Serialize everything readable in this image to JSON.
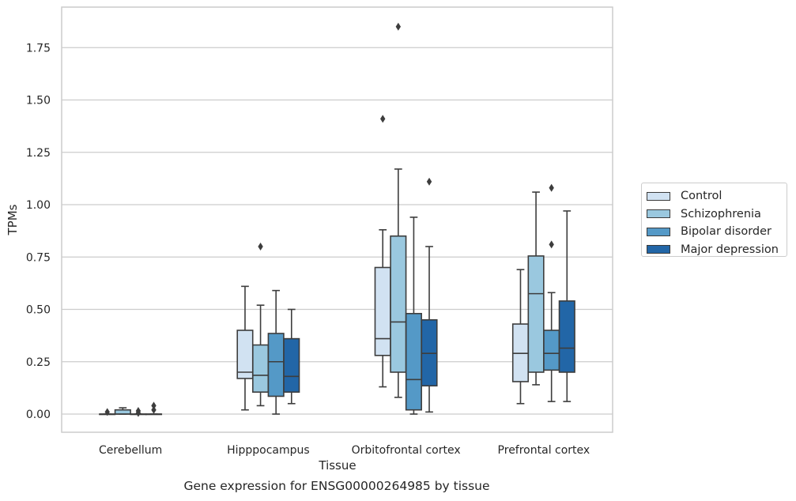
{
  "chart_data": {
    "type": "box",
    "title": "Gene expression for ENSG00000264985 by tissue",
    "xlabel": "Tissue",
    "ylabel": "TPMs",
    "ylim": [
      -0.09,
      1.9
    ],
    "yticks": [
      0.0,
      0.25,
      0.5,
      0.75,
      1.0,
      1.25,
      1.5,
      1.75
    ],
    "ytick_labels": [
      "0.00",
      "0.25",
      "0.50",
      "0.75",
      "1.00",
      "1.25",
      "1.50",
      "1.75"
    ],
    "grid": "horizontal",
    "legend_position": "right",
    "categories": [
      "Cerebellum",
      "Hipppocampus",
      "Orbitofrontal cortex",
      "Prefrontal cortex"
    ],
    "series": [
      {
        "name": "Control",
        "color": "#d1e2f2",
        "boxes": [
          {
            "whislo": 0.0,
            "q1": 0.0,
            "med": 0.0,
            "q3": 0.0,
            "whishi": 0.0,
            "fliers": [
              0.01
            ]
          },
          {
            "whislo": 0.02,
            "q1": 0.17,
            "med": 0.2,
            "q3": 0.4,
            "whishi": 0.61,
            "fliers": []
          },
          {
            "whislo": 0.13,
            "q1": 0.28,
            "med": 0.36,
            "q3": 0.7,
            "whishi": 0.88,
            "fliers": [
              1.41
            ]
          },
          {
            "whislo": 0.05,
            "q1": 0.155,
            "med": 0.29,
            "q3": 0.43,
            "whishi": 0.69,
            "fliers": []
          }
        ]
      },
      {
        "name": "Schizophrenia",
        "color": "#9ac8df",
        "boxes": [
          {
            "whislo": 0.0,
            "q1": 0.0,
            "med": 0.0,
            "q3": 0.02,
            "whishi": 0.03,
            "fliers": []
          },
          {
            "whislo": 0.04,
            "q1": 0.105,
            "med": 0.185,
            "q3": 0.33,
            "whishi": 0.52,
            "fliers": [
              0.8
            ]
          },
          {
            "whislo": 0.08,
            "q1": 0.2,
            "med": 0.44,
            "q3": 0.85,
            "whishi": 1.17,
            "fliers": [
              1.85
            ]
          },
          {
            "whislo": 0.14,
            "q1": 0.2,
            "med": 0.575,
            "q3": 0.755,
            "whishi": 1.06,
            "fliers": []
          }
        ]
      },
      {
        "name": "Bipolar disorder",
        "color": "#5499c7",
        "boxes": [
          {
            "whislo": 0.0,
            "q1": 0.0,
            "med": 0.0,
            "q3": 0.0,
            "whishi": 0.0,
            "fliers": [
              0.005,
              0.015
            ]
          },
          {
            "whislo": 0.0,
            "q1": 0.085,
            "med": 0.25,
            "q3": 0.385,
            "whishi": 0.59,
            "fliers": []
          },
          {
            "whislo": 0.0,
            "q1": 0.02,
            "med": 0.165,
            "q3": 0.48,
            "whishi": 0.94,
            "fliers": []
          },
          {
            "whislo": 0.06,
            "q1": 0.21,
            "med": 0.29,
            "q3": 0.4,
            "whishi": 0.58,
            "fliers": [
              0.81,
              1.08
            ]
          }
        ]
      },
      {
        "name": "Major depression",
        "color": "#2266a7",
        "boxes": [
          {
            "whislo": 0.0,
            "q1": 0.0,
            "med": 0.0,
            "q3": 0.0,
            "whishi": 0.0,
            "fliers": [
              0.02,
              0.04
            ]
          },
          {
            "whislo": 0.05,
            "q1": 0.105,
            "med": 0.18,
            "q3": 0.36,
            "whishi": 0.5,
            "fliers": []
          },
          {
            "whislo": 0.01,
            "q1": 0.135,
            "med": 0.29,
            "q3": 0.45,
            "whishi": 0.8,
            "fliers": [
              1.11
            ]
          },
          {
            "whislo": 0.06,
            "q1": 0.2,
            "med": 0.315,
            "q3": 0.54,
            "whishi": 0.97,
            "fliers": []
          }
        ]
      }
    ]
  }
}
